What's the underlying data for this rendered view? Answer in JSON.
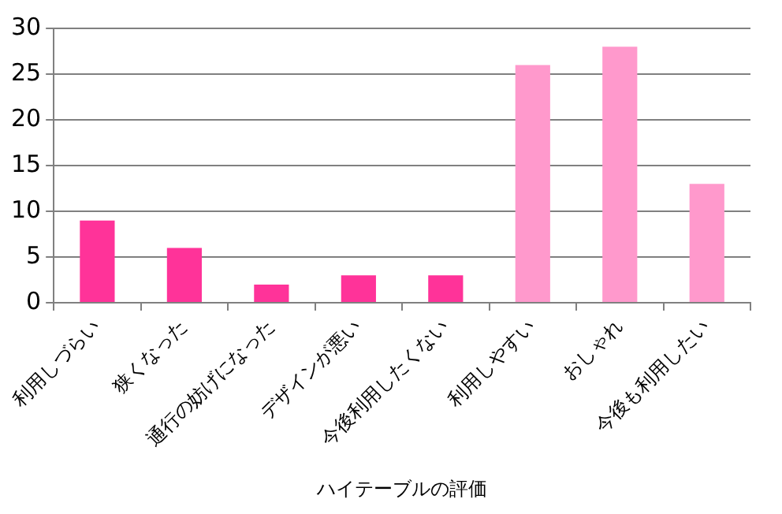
{
  "chart_data": {
    "type": "bar",
    "xlabel": "ハイテーブルの評価",
    "categories": [
      "利用しづらい",
      "狭くなった",
      "通行の妨げになった",
      "デザインが悪い",
      "今後利用したくない",
      "利用しやすい",
      "おしゃれ",
      "今後も利用したい"
    ],
    "values": [
      9,
      6,
      2,
      3,
      3,
      26,
      28,
      13
    ],
    "colors": [
      "#ff3399",
      "#ff3399",
      "#ff3399",
      "#ff3399",
      "#ff3399",
      "#ff99cc",
      "#ff99cc",
      "#ff99cc"
    ],
    "ylim": [
      0,
      30
    ],
    "yticks": [
      0,
      5,
      10,
      15,
      20,
      25,
      30
    ],
    "grid": "y",
    "legend": false
  }
}
